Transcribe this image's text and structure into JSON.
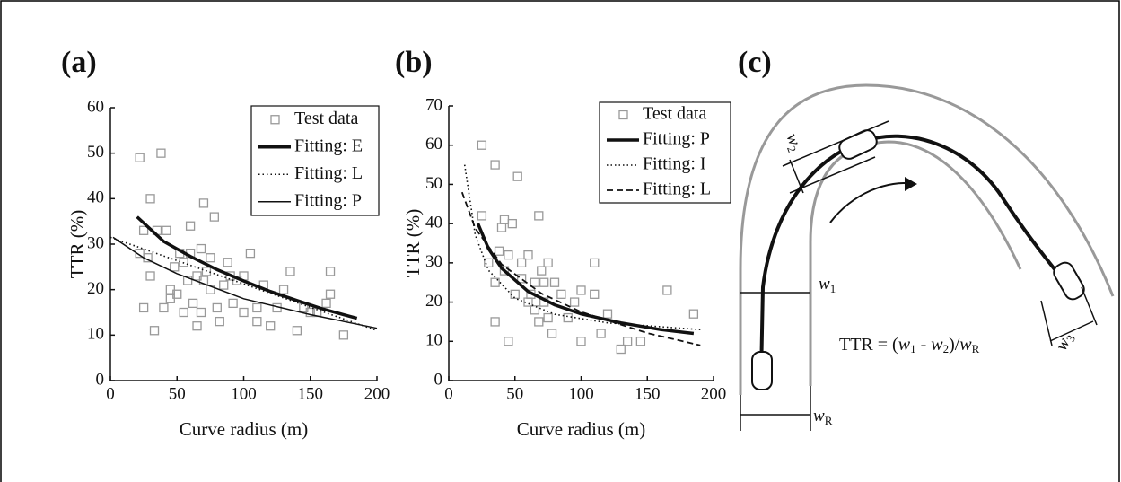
{
  "chart_data": [
    {
      "type": "scatter",
      "title": "(a)",
      "x_label": "Curve radius (m)",
      "y_label": "TTR (%)",
      "xlim": [
        0,
        200
      ],
      "xticks": [
        0,
        50,
        100,
        150,
        200
      ],
      "ylim": [
        0,
        60
      ],
      "yticks": [
        0,
        10,
        20,
        30,
        40,
        50,
        60
      ],
      "legend": "upper right",
      "series": [
        {
          "name": "Test data",
          "color": "#999999",
          "style": "square",
          "x": [
            22,
            38,
            30,
            25,
            35,
            28,
            22,
            30,
            25,
            33,
            40,
            45,
            50,
            48,
            52,
            55,
            58,
            60,
            62,
            65,
            68,
            70,
            72,
            75,
            75,
            78,
            80,
            82,
            85,
            88,
            90,
            92,
            95,
            100,
            100,
            105,
            110,
            110,
            115,
            120,
            125,
            130,
            135,
            140,
            145,
            150,
            155,
            162,
            165,
            165,
            175,
            42,
            55,
            65,
            68,
            60,
            45,
            70
          ],
          "values": [
            49,
            50,
            40,
            33,
            33,
            27,
            28,
            23,
            16,
            11,
            16,
            20,
            19,
            25,
            28,
            26,
            22,
            34,
            17,
            23,
            29,
            39,
            24,
            27,
            20,
            36,
            16,
            13,
            21,
            26,
            23,
            17,
            22,
            23,
            15,
            28,
            16,
            13,
            21,
            12,
            16,
            20,
            24,
            11,
            16,
            15,
            15,
            17,
            24,
            19,
            10,
            33,
            15,
            12,
            15,
            28,
            18,
            22
          ]
        },
        {
          "name": "Fitting: E",
          "color": "#111111",
          "style": "thick",
          "x": [
            20,
            40,
            60,
            80,
            100,
            120,
            140,
            160,
            185
          ],
          "values": [
            36,
            30.6,
            27.3,
            24.4,
            21.9,
            19.6,
            17.6,
            15.7,
            13.7
          ]
        },
        {
          "name": "Fitting: L",
          "color": "#111111",
          "style": "dotted",
          "x": [
            0,
            200
          ],
          "values": [
            31.5,
            11
          ]
        },
        {
          "name": "Fitting: P",
          "color": "#111111",
          "style": "thin",
          "x": [
            2,
            25,
            50,
            100,
            150,
            200
          ],
          "values": [
            31.5,
            27,
            23.5,
            18,
            14.5,
            11.5
          ]
        }
      ]
    },
    {
      "type": "scatter",
      "title": "(b)",
      "x_label": "Curve radius (m)",
      "y_label": "TTR (%)",
      "xlim": [
        0,
        200
      ],
      "xticks": [
        0,
        50,
        100,
        150,
        200
      ],
      "ylim": [
        0,
        70
      ],
      "yticks": [
        0,
        10,
        20,
        30,
        40,
        50,
        60,
        70
      ],
      "legend": "upper right",
      "series": [
        {
          "name": "Test data",
          "color": "#999999",
          "style": "square",
          "x": [
            25,
            35,
            52,
            40,
            48,
            42,
            68,
            25,
            30,
            35,
            38,
            45,
            42,
            50,
            55,
            60,
            60,
            62,
            65,
            68,
            70,
            72,
            75,
            75,
            78,
            80,
            85,
            90,
            95,
            100,
            100,
            110,
            110,
            115,
            120,
            130,
            135,
            145,
            165,
            185,
            35,
            45,
            55,
            65,
            72
          ],
          "values": [
            60,
            55,
            52,
            39,
            40,
            41,
            42,
            42,
            30,
            25,
            33,
            32,
            28,
            22,
            30,
            32,
            20,
            22,
            18,
            15,
            28,
            25,
            30,
            16,
            12,
            25,
            22,
            16,
            20,
            23,
            10,
            22,
            30,
            12,
            17,
            8,
            10,
            10,
            23,
            17,
            15,
            10,
            26,
            25,
            20
          ]
        },
        {
          "name": "Fitting: P",
          "color": "#111111",
          "style": "thick",
          "x": [
            22,
            30,
            40,
            60,
            80,
            100,
            130,
            160,
            185
          ],
          "values": [
            40,
            33.6,
            28.6,
            22.7,
            19.3,
            17,
            14.7,
            13,
            12
          ]
        },
        {
          "name": "Fitting: I",
          "color": "#111111",
          "style": "dotted",
          "x": [
            12,
            20,
            30,
            50,
            80,
            120,
            190
          ],
          "values": [
            55,
            37.1,
            28.1,
            21,
            16.9,
            14.7,
            13
          ]
        },
        {
          "name": "Fitting: L",
          "color": "#111111",
          "style": "dashed",
          "x": [
            10,
            20,
            40,
            70,
            100,
            150,
            190
          ],
          "values": [
            48,
            38.8,
            29.6,
            22.2,
            17.5,
            12.1,
            9
          ]
        }
      ]
    }
  ],
  "panel_c": {
    "label": "(c)",
    "w1": {
      "main": "w",
      "sub": "1"
    },
    "w2": {
      "main": "w",
      "sub": "2"
    },
    "w3": {
      "main": "w",
      "sub": "3"
    },
    "wR": {
      "main": "w",
      "sub": "R"
    },
    "formula": [
      "TTR = (",
      "w",
      "1",
      " - ",
      "w",
      "2",
      ")/",
      "w",
      "R"
    ]
  }
}
